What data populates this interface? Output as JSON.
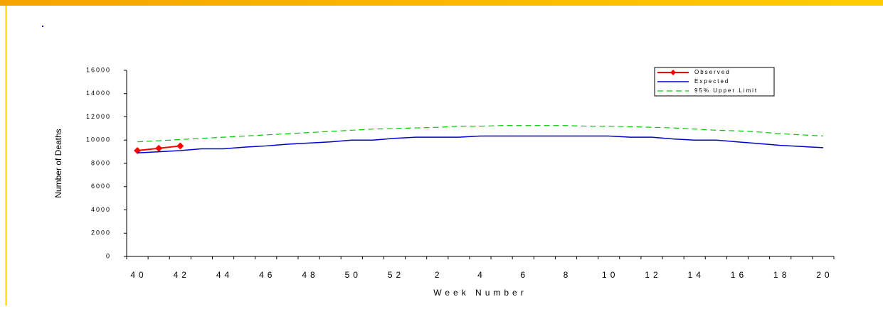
{
  "chart_data": {
    "type": "line",
    "x_label": "Week Number",
    "y_label": "Number of Deaths",
    "categories": [
      "40",
      null,
      "42",
      null,
      "44",
      null,
      "46",
      null,
      "48",
      null,
      "50",
      null,
      "52",
      null,
      "2",
      null,
      "4",
      null,
      "6",
      null,
      "8",
      null,
      "10",
      null,
      "12",
      null,
      "14",
      null,
      "16",
      null,
      "18",
      null,
      "20"
    ],
    "series": [
      {
        "name": "Observed",
        "color": "#ff0000",
        "values": [
          9100,
          9300,
          9500,
          null,
          null,
          null,
          null,
          null,
          null,
          null,
          null,
          null,
          null,
          null,
          null,
          null,
          null,
          null,
          null,
          null,
          null,
          null,
          null,
          null,
          null,
          null,
          null,
          null,
          null,
          null,
          null,
          null,
          null
        ]
      },
      {
        "name": "Expected",
        "color": "#0000cc",
        "values": [
          8900,
          9000,
          9100,
          9250,
          9250,
          9400,
          9500,
          9650,
          9750,
          9850,
          10000,
          10000,
          10150,
          10250,
          10250,
          10250,
          10350,
          10350,
          10350,
          10350,
          10350,
          10350,
          10350,
          10250,
          10250,
          10100,
          10000,
          10000,
          9850,
          9700,
          9550,
          9450,
          9350
        ]
      },
      {
        "name": "95% Upper Limit",
        "color": "#00cc00",
        "values": [
          9850,
          9950,
          10050,
          10150,
          10250,
          10350,
          10450,
          10550,
          10650,
          10750,
          10850,
          10950,
          11000,
          11050,
          11100,
          11200,
          11200,
          11250,
          11250,
          11250,
          11250,
          11200,
          11200,
          11150,
          11100,
          11050,
          10950,
          10850,
          10800,
          10700,
          10550,
          10450,
          10350
        ]
      }
    ],
    "ylim": [
      0,
      16000
    ],
    "yticks": [
      0,
      2000,
      4000,
      6000,
      8000,
      10000,
      12000,
      14000,
      16000
    ],
    "legend": "upper right"
  }
}
